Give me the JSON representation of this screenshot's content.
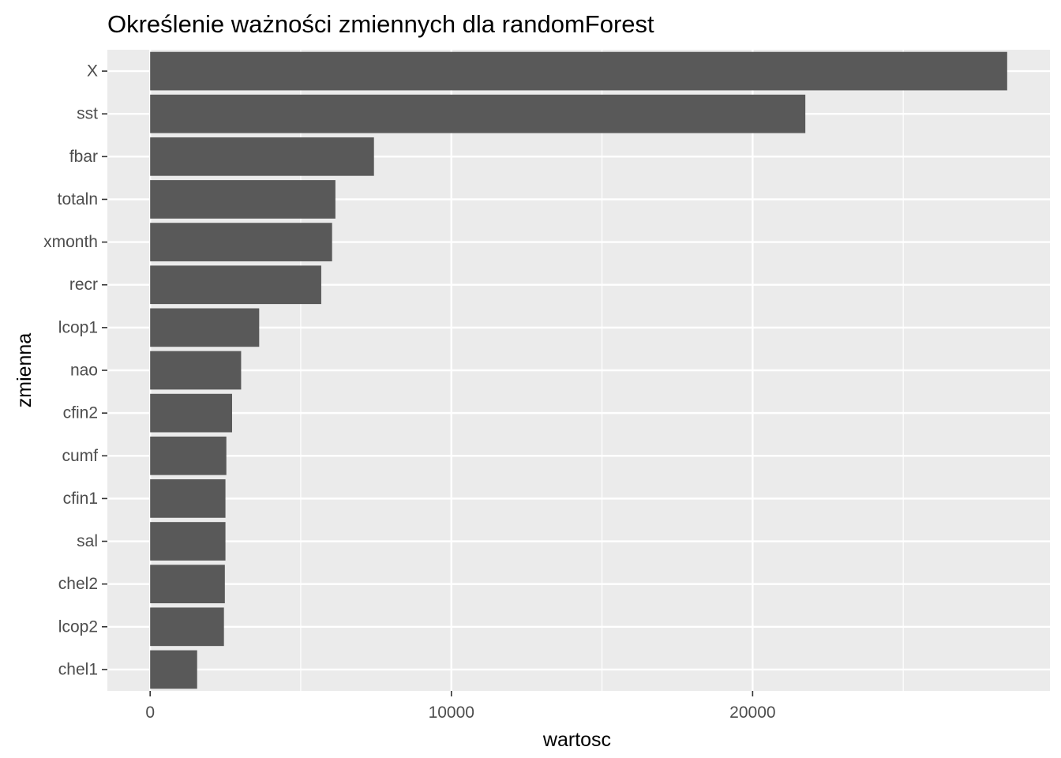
{
  "chart_data": {
    "type": "bar",
    "orientation": "horizontal",
    "title": "Określenie ważności zmiennych dla randomForest",
    "xlabel": "wartosc",
    "ylabel": "zmienna",
    "categories": [
      "X",
      "sst",
      "fbar",
      "totaln",
      "xmonth",
      "recr",
      "lcop1",
      "nao",
      "cfin2",
      "cumf",
      "cfin1",
      "sal",
      "chel2",
      "lcop2",
      "chel1"
    ],
    "values": [
      28450,
      21750,
      7430,
      6150,
      6040,
      5680,
      3620,
      3020,
      2720,
      2530,
      2500,
      2500,
      2480,
      2450,
      1560
    ],
    "xlim": [
      -1420,
      29870
    ],
    "x_ticks": [
      0,
      10000,
      20000
    ],
    "x_tick_labels": [
      "0",
      "10000",
      "20000"
    ],
    "grid": true,
    "colors": {
      "bar": "#595959",
      "panel_background": "#ebebeb",
      "grid_line": "#ffffff",
      "tick_label": "#4d4d4d",
      "axis_tick": "#333333",
      "title": "#000000"
    }
  }
}
